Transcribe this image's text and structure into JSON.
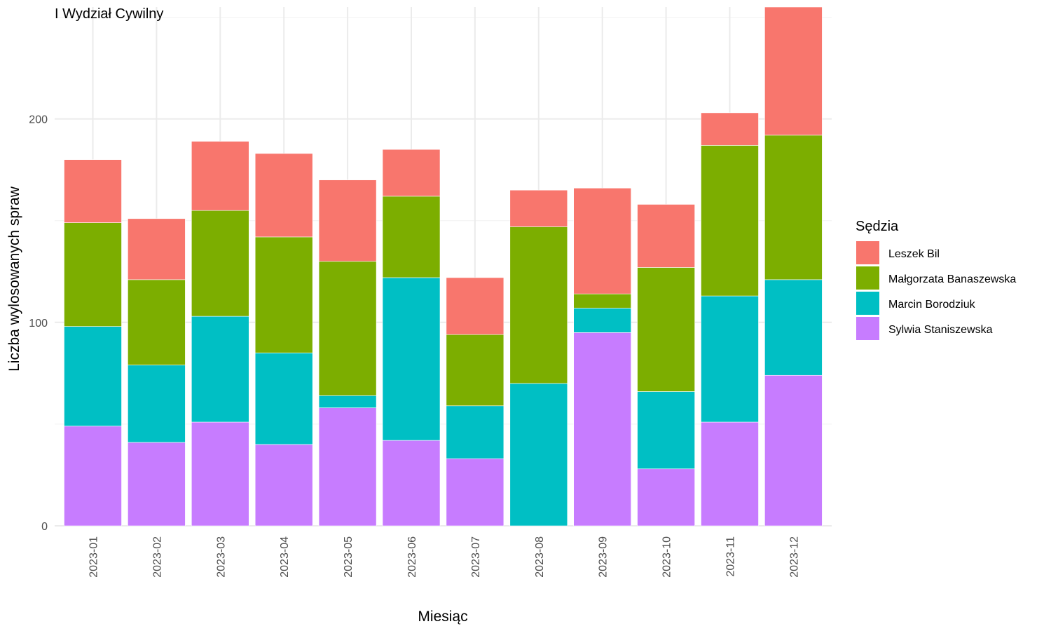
{
  "chart_data": {
    "type": "bar",
    "stacked": true,
    "title": "I Wydział Cywilny",
    "xlabel": "Miesiąc",
    "ylabel": "Liczba wylosowanych spraw",
    "ylim": [
      0,
      255
    ],
    "yticks": [
      0,
      100,
      200
    ],
    "grid": true,
    "legend_title": "Sędzia",
    "legend_position": "right",
    "categories": [
      "2023-01",
      "2023-02",
      "2023-03",
      "2023-04",
      "2023-05",
      "2023-06",
      "2023-07",
      "2023-08",
      "2023-09",
      "2023-10",
      "2023-11",
      "2023-12"
    ],
    "series": [
      {
        "name": "Sylwia Staniszewska",
        "color": "#C77CFF",
        "values": [
          49,
          41,
          51,
          40,
          58,
          42,
          33,
          0,
          95,
          28,
          51,
          74
        ]
      },
      {
        "name": "Marcin Borodziuk",
        "color": "#00BFC4",
        "values": [
          49,
          38,
          52,
          45,
          6,
          80,
          26,
          70,
          12,
          38,
          62,
          47
        ]
      },
      {
        "name": "Małgorzata Banaszewska",
        "color": "#7CAE00",
        "values": [
          51,
          42,
          52,
          57,
          66,
          40,
          35,
          77,
          7,
          61,
          74,
          71
        ]
      },
      {
        "name": "Leszek Bil",
        "color": "#F8766D",
        "values": [
          31,
          30,
          34,
          41,
          40,
          23,
          28,
          18,
          52,
          31,
          16,
          63
        ]
      }
    ],
    "legend_order": [
      "Leszek Bil",
      "Małgorzata Banaszewska",
      "Marcin Borodziuk",
      "Sylwia Staniszewska"
    ]
  }
}
